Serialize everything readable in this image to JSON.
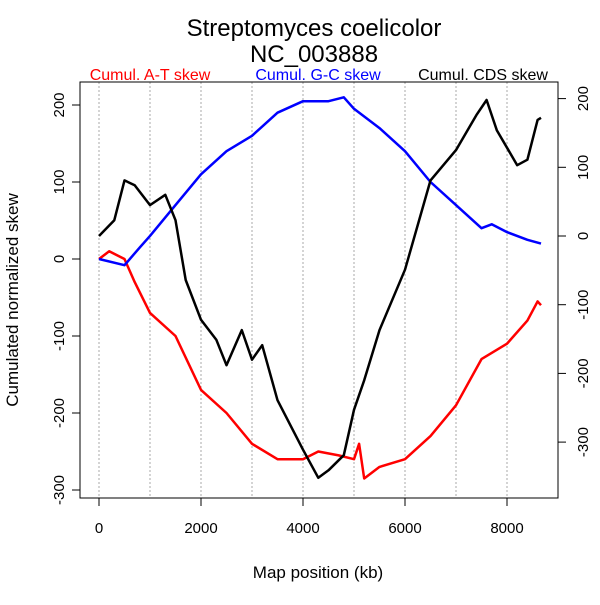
{
  "chart_data": {
    "type": "line",
    "title": "Streptomyces coelicolor",
    "subtitle": "NC_003888",
    "xlabel": "Map position (kb)",
    "ylabel": "Cumulated normalized skew",
    "xlim": [
      0,
      8667
    ],
    "ylim": [
      -300,
      200
    ],
    "y2lim": [
      -350,
      220
    ],
    "x_ticks": [
      0,
      2000,
      4000,
      6000,
      8000
    ],
    "y_ticks": [
      -300,
      -200,
      -100,
      0,
      100,
      200
    ],
    "y2_ticks": [
      -300,
      -200,
      -100,
      0,
      100,
      200
    ],
    "grid": "vertical dotted lines every 1000 kb",
    "legend_placement": "top, above plot",
    "series": [
      {
        "name": "Cumul. A-T skew",
        "color": "#ff0000",
        "axis": "left",
        "x": [
          0,
          200,
          500,
          700,
          1000,
          1500,
          2000,
          2500,
          3000,
          3500,
          4000,
          4300,
          4700,
          5000,
          5100,
          5200,
          5500,
          6000,
          6500,
          7000,
          7500,
          8000,
          8400,
          8600,
          8667
        ],
        "y": [
          0,
          10,
          0,
          -30,
          -70,
          -100,
          -170,
          -200,
          -240,
          -260,
          -260,
          -250,
          -255,
          -260,
          -240,
          -285,
          -270,
          -260,
          -230,
          -190,
          -130,
          -110,
          -80,
          -55,
          -60
        ]
      },
      {
        "name": "Cumul. G-C skew",
        "color": "#0000ff",
        "axis": "left",
        "x": [
          0,
          500,
          800,
          1000,
          1500,
          2000,
          2500,
          3000,
          3500,
          4000,
          4500,
          4800,
          5000,
          5500,
          6000,
          6500,
          7000,
          7500,
          7700,
          8000,
          8400,
          8667
        ],
        "y": [
          0,
          -8,
          15,
          30,
          70,
          110,
          140,
          160,
          190,
          205,
          205,
          210,
          195,
          170,
          140,
          100,
          70,
          40,
          45,
          35,
          25,
          20
        ]
      },
      {
        "name": "Cumul. CDS skew",
        "color": "#000000",
        "axis": "right",
        "x": [
          0,
          300,
          500,
          700,
          1000,
          1300,
          1500,
          1700,
          2000,
          2300,
          2500,
          2800,
          3000,
          3200,
          3500,
          4000,
          4300,
          4500,
          4800,
          5000,
          5200,
          5500,
          6000,
          6500,
          7000,
          7400,
          7600,
          7800,
          8200,
          8400,
          8600,
          8667
        ],
        "y": [
          0,
          23,
          81,
          74,
          45,
          60,
          23,
          -64,
          -122,
          -151,
          -188,
          -137,
          -180,
          -159,
          -239,
          -311,
          -352,
          -341,
          -319,
          -253,
          -210,
          -137,
          -49,
          81,
          125,
          176,
          198,
          154,
          103,
          111,
          169,
          172
        ]
      }
    ]
  }
}
